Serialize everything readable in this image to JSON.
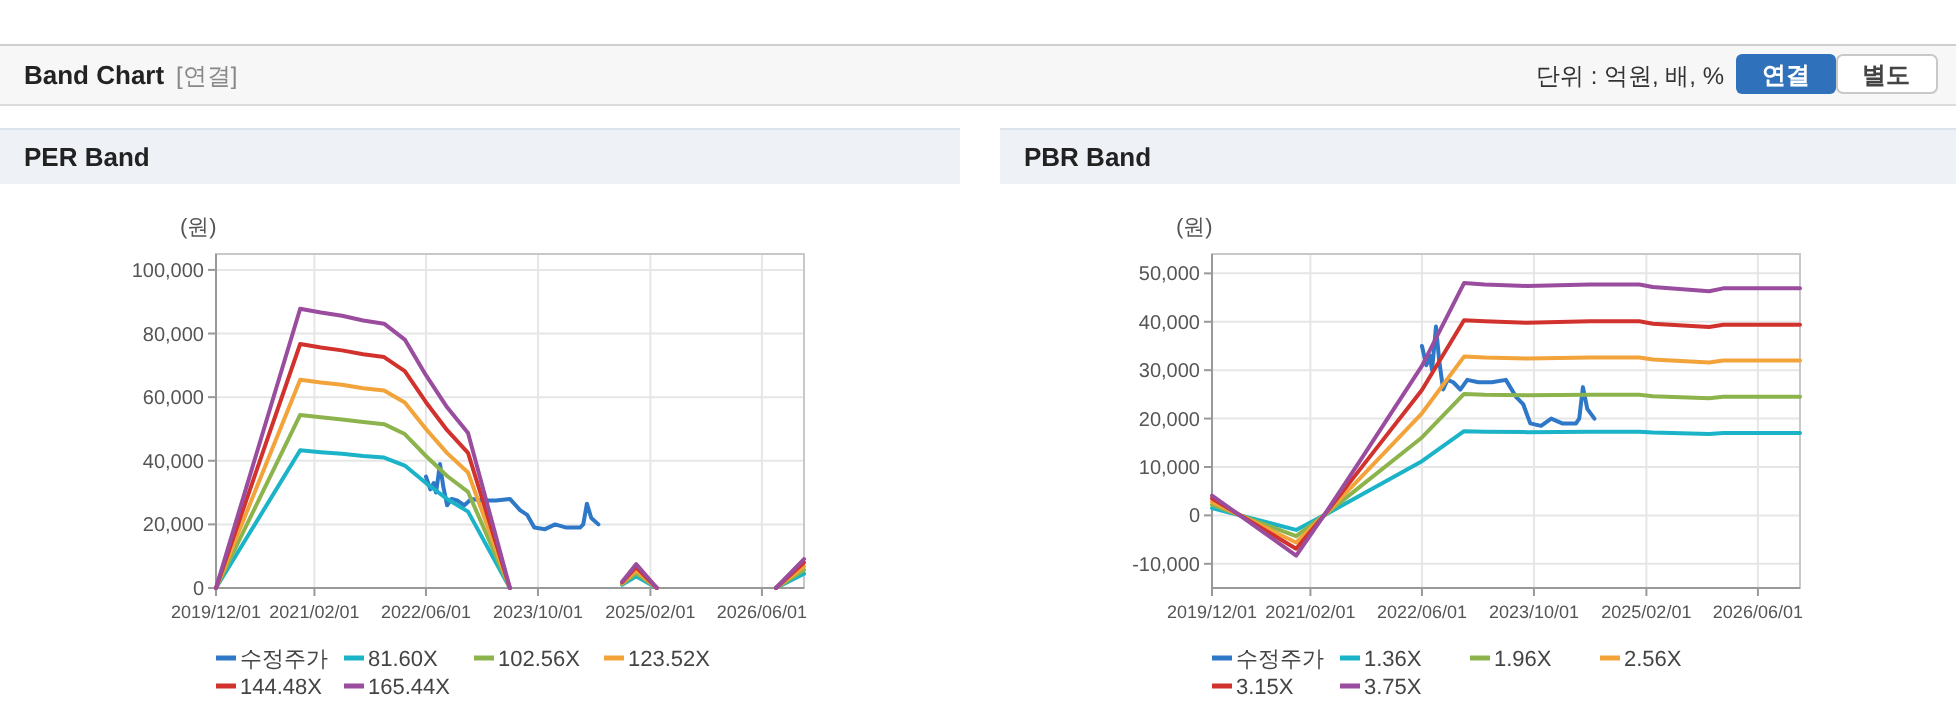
{
  "chart_data": [
    {
      "type": "other",
      "title": "Band Chart",
      "annotations": [
        "[연결]",
        "단위 : 억원, 배, %",
        "연결",
        "별도"
      ]
    },
    {
      "type": "line",
      "title": "PER Band",
      "ylabel": "(원)",
      "x": [
        "2019-12",
        "2020-12",
        "2021-03",
        "2021-06",
        "2021-09",
        "2021-12",
        "2022-03",
        "2022-06",
        "2022-09",
        "2022-12",
        "2023-06",
        "2024-01",
        "2024-10",
        "2024-12",
        "2025-03",
        "2026-01",
        "2026-08",
        "2026-12"
      ],
      "xlim": [
        "2019-12-01",
        "2026-12-01"
      ],
      "xticks": [
        {
          "value": "2019-12-01",
          "label": "2019/12/01"
        },
        {
          "value": "2021-02-01",
          "label": "2021/02/01"
        },
        {
          "value": "2022-06-01",
          "label": "2022/06/01"
        },
        {
          "value": "2023-10-01",
          "label": "2023/10/01"
        },
        {
          "value": "2025-02-01",
          "label": "2025/02/01"
        },
        {
          "value": "2026-06-01",
          "label": "2026/06/01"
        }
      ],
      "ylim": [
        0,
        105000
      ],
      "yticks": [
        0,
        {
          "value": 20000,
          "label": "20,000"
        },
        {
          "value": 40000,
          "label": "40,000"
        },
        {
          "value": 60000,
          "label": "60,000"
        },
        {
          "value": 80000,
          "label": "80,000"
        },
        {
          "value": 100000,
          "label": "100,000"
        }
      ],
      "grid": true,
      "legend": "bottom",
      "series": [
        {
          "name": "수정주가",
          "color": "#2f78c8",
          "x": [
            "2022-06-01",
            "2022-06-20",
            "2022-07-05",
            "2022-07-15",
            "2022-08-01",
            "2022-08-15",
            "2022-09-01",
            "2022-09-20",
            "2022-10-15",
            "2022-11-15",
            "2022-12-15",
            "2023-02-01",
            "2023-04-01",
            "2023-06-01",
            "2023-07-15",
            "2023-08-15",
            "2023-09-15",
            "2023-11-01",
            "2023-12-15",
            "2024-02-01",
            "2024-04-01",
            "2024-04-15",
            "2024-05-01",
            "2024-05-20",
            "2024-06-20"
          ],
          "values": [
            35000,
            31000,
            33000,
            30000,
            39000,
            32000,
            26000,
            28000,
            27500,
            26000,
            28000,
            27500,
            27500,
            28000,
            24500,
            23000,
            19000,
            18500,
            20000,
            19000,
            19000,
            20000,
            26500,
            22000,
            20000
          ]
        },
        {
          "name": "81.60X",
          "color": "#1bb3c8",
          "values": [
            0,
            43300,
            42700,
            42200,
            41500,
            41000,
            38500,
            33000,
            28000,
            24000,
            0,
            null,
            1000,
            3700,
            0,
            null,
            0,
            4500
          ]
        },
        {
          "name": "102.56X",
          "color": "#8db44c",
          "values": [
            0,
            54400,
            53700,
            53000,
            52200,
            51500,
            48400,
            41500,
            35200,
            30200,
            0,
            null,
            1300,
            4700,
            0,
            null,
            0,
            5700
          ]
        },
        {
          "name": "123.52X",
          "color": "#f2a33a",
          "values": [
            0,
            65500,
            64600,
            63900,
            62800,
            62100,
            58300,
            50000,
            42400,
            36300,
            0,
            null,
            1500,
            5600,
            0,
            null,
            0,
            6800
          ]
        },
        {
          "name": "144.48X",
          "color": "#d2322d",
          "values": [
            0,
            76700,
            75600,
            74700,
            73500,
            72600,
            68200,
            58400,
            49600,
            42500,
            0,
            null,
            1800,
            6600,
            0,
            null,
            0,
            8000
          ]
        },
        {
          "name": "165.44X",
          "color": "#9a4d9e",
          "values": [
            0,
            87800,
            86600,
            85600,
            84100,
            83100,
            78100,
            66900,
            56800,
            48700,
            0,
            null,
            2000,
            7500,
            0,
            null,
            0,
            9100
          ]
        }
      ]
    },
    {
      "type": "line",
      "title": "PBR Band",
      "ylabel": "(원)",
      "x": [
        "2019-12",
        "2020-12",
        "2021-04",
        "2021-09",
        "2022-06",
        "2022-12",
        "2023-03",
        "2023-09",
        "2024-06",
        "2025-01",
        "2025-03",
        "2025-11",
        "2026-01",
        "2026-12"
      ],
      "xlim": [
        "2019-12-01",
        "2026-12-01"
      ],
      "xticks": [
        {
          "value": "2019-12-01",
          "label": "2019/12/01"
        },
        {
          "value": "2021-02-01",
          "label": "2021/02/01"
        },
        {
          "value": "2022-06-01",
          "label": "2022/06/01"
        },
        {
          "value": "2023-10-01",
          "label": "2023/10/01"
        },
        {
          "value": "2025-02-01",
          "label": "2025/02/01"
        },
        {
          "value": "2026-06-01",
          "label": "2026/06/01"
        }
      ],
      "ylim": [
        -15000,
        54000
      ],
      "yticks": [
        {
          "value": -10000,
          "label": "-10,000"
        },
        0,
        {
          "value": 10000,
          "label": "10,000"
        },
        {
          "value": 20000,
          "label": "20,000"
        },
        {
          "value": 30000,
          "label": "30,000"
        },
        {
          "value": 40000,
          "label": "40,000"
        },
        {
          "value": 50000,
          "label": "50,000"
        }
      ],
      "grid": true,
      "legend": "bottom",
      "series": [
        {
          "name": "수정주가",
          "color": "#2f78c8",
          "x": [
            "2022-06-01",
            "2022-06-20",
            "2022-07-05",
            "2022-07-15",
            "2022-08-01",
            "2022-08-15",
            "2022-09-01",
            "2022-09-20",
            "2022-10-15",
            "2022-11-15",
            "2022-12-15",
            "2023-02-01",
            "2023-04-01",
            "2023-06-01",
            "2023-07-15",
            "2023-08-15",
            "2023-09-15",
            "2023-11-01",
            "2023-12-15",
            "2024-02-01",
            "2024-04-01",
            "2024-04-15",
            "2024-05-01",
            "2024-05-20",
            "2024-06-20"
          ],
          "values": [
            35000,
            31000,
            33000,
            30000,
            39000,
            32000,
            26000,
            28000,
            27500,
            26000,
            28000,
            27500,
            27500,
            28000,
            24500,
            23000,
            19000,
            18500,
            20000,
            19000,
            19000,
            20000,
            26500,
            22000,
            20000
          ]
        },
        {
          "name": "1.36X",
          "color": "#1bb3c8",
          "values": [
            1500,
            -3000,
            0,
            4000,
            11200,
            17400,
            17300,
            17200,
            17300,
            17300,
            17100,
            16800,
            17000,
            17000
          ]
        },
        {
          "name": "1.96X",
          "color": "#8db44c",
          "values": [
            2200,
            -4300,
            0,
            5800,
            16100,
            25100,
            24900,
            24800,
            24900,
            24900,
            24600,
            24200,
            24500,
            24500
          ]
        },
        {
          "name": "2.56X",
          "color": "#f2a33a",
          "values": [
            2800,
            -5600,
            0,
            7500,
            21100,
            32800,
            32600,
            32400,
            32600,
            32600,
            32200,
            31600,
            32000,
            32000
          ]
        },
        {
          "name": "3.15X",
          "color": "#d2322d",
          "values": [
            3500,
            -6900,
            0,
            9300,
            25900,
            40300,
            40100,
            39800,
            40100,
            40100,
            39600,
            38900,
            39400,
            39400
          ]
        },
        {
          "name": "3.75X",
          "color": "#9a4d9e",
          "values": [
            4100,
            -8300,
            0,
            11000,
            30900,
            48000,
            47700,
            47400,
            47700,
            47700,
            47200,
            46300,
            46900,
            46900
          ]
        }
      ]
    }
  ]
}
